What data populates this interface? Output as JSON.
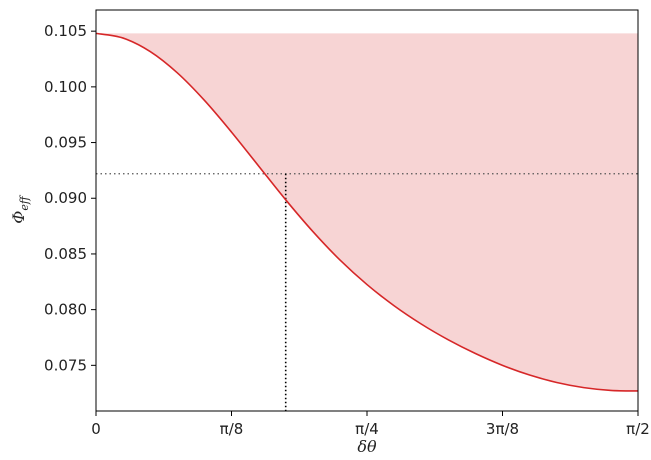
{
  "chart_data": {
    "type": "line",
    "title": "",
    "xlabel": "δθ",
    "ylabel": "Φ",
    "ylabel_subscript": "eff",
    "x_ticks": [
      {
        "value": 0,
        "label": "0"
      },
      {
        "value": 0.3927,
        "label": "π/8"
      },
      {
        "value": 0.7854,
        "label": "π/4"
      },
      {
        "value": 1.1781,
        "label": "3π/8"
      },
      {
        "value": 1.5708,
        "label": "π/2"
      }
    ],
    "y_ticks": [
      {
        "value": 0.075,
        "label": "0.075"
      },
      {
        "value": 0.08,
        "label": "0.080"
      },
      {
        "value": 0.085,
        "label": "0.085"
      },
      {
        "value": 0.09,
        "label": "0.090"
      },
      {
        "value": 0.095,
        "label": "0.095"
      },
      {
        "value": 0.1,
        "label": "0.100"
      },
      {
        "value": 0.105,
        "label": "0.105"
      }
    ],
    "xlim": [
      0,
      1.5708
    ],
    "ylim": [
      0.0709,
      0.1069
    ],
    "series": [
      {
        "color": "#d62728",
        "x": [
          0,
          0.0785,
          0.1571,
          0.2356,
          0.3142,
          0.3927,
          0.4712,
          0.5498,
          0.6283,
          0.7069,
          0.7854,
          0.8639,
          0.9425,
          1.021,
          1.0996,
          1.1781,
          1.2566,
          1.3352,
          1.4137,
          1.4923,
          1.5708
        ],
        "y": [
          0.1048,
          0.10438,
          0.10317,
          0.10126,
          0.09879,
          0.09594,
          0.0929,
          0.08986,
          0.08702,
          0.08446,
          0.08225,
          0.08035,
          0.07871,
          0.07729,
          0.07606,
          0.075,
          0.07413,
          0.07346,
          0.073,
          0.07275,
          0.0727
        ]
      }
    ],
    "fill": {
      "color": "#d62728",
      "opacity": 0.2,
      "upper": 0.1048
    },
    "reference_lines": {
      "x": 0.5498,
      "y": 0.0922,
      "style": "dotted"
    },
    "grid": false
  }
}
